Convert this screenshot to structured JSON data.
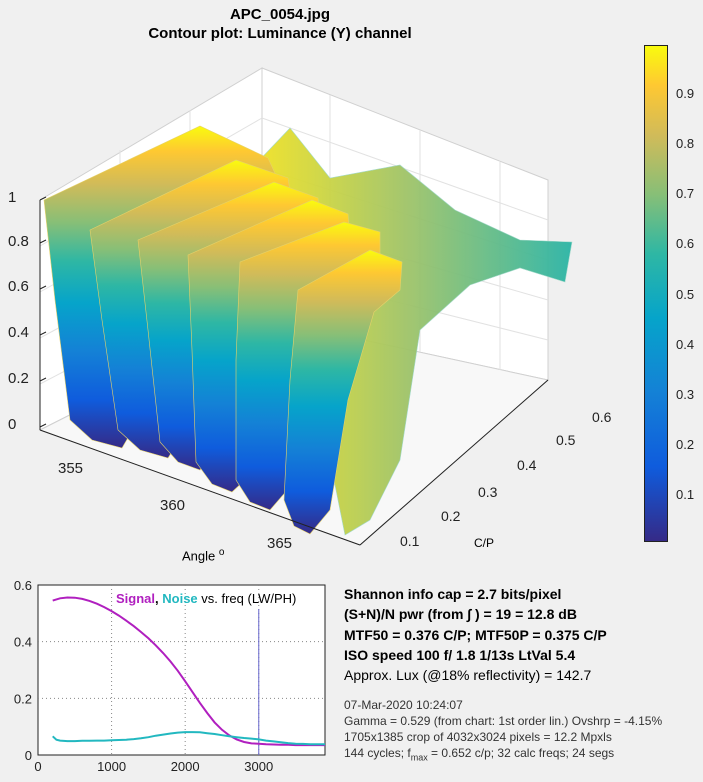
{
  "surface": {
    "title": "APC_0054.jpg",
    "subtitle": "Contour plot:  Luminance (Y) channel",
    "z_ticks": [
      "0",
      "0.2",
      "0.4",
      "0.6",
      "0.8",
      "1"
    ],
    "angle_ticks": [
      "355",
      "360",
      "365"
    ],
    "angle_label": "Angle",
    "angle_label_sup": "o",
    "cp_ticks": [
      "0.1",
      "0.2",
      "0.3",
      "0.4",
      "0.5",
      "0.6"
    ],
    "cp_label": "C/P",
    "colorbar_ticks": [
      "0.1",
      "0.2",
      "0.3",
      "0.4",
      "0.5",
      "0.6",
      "0.7",
      "0.8",
      "0.9"
    ]
  },
  "chart_data": [
    {
      "type": "surface",
      "title": "APC_0054.jpg",
      "subtitle": "Contour plot:  Luminance (Y) channel",
      "xlabel": "Angle °",
      "ylabel": "C/P",
      "angle_range": [
        352,
        368
      ],
      "cp_range": [
        0.05,
        0.65
      ],
      "zlim": [
        0,
        1
      ],
      "colormap": "parula",
      "colorbar_range": [
        0,
        1
      ]
    },
    {
      "type": "line",
      "xlim": [
        0,
        3900
      ],
      "ylim": [
        0,
        0.6
      ],
      "x_ticks": [
        "0",
        "1000",
        "2000",
        "3000"
      ],
      "y_ticks": [
        "0",
        "0.2",
        "0.4",
        "0.6"
      ],
      "legend": {
        "signal": "Signal",
        "sep": ", ",
        "noise": "Noise",
        "suffix": " vs. freq (LW/PH)"
      },
      "vline_x": 3000,
      "series": [
        {
          "name": "Signal",
          "color": "#b01fbf",
          "x": [
            200,
            300,
            400,
            500,
            600,
            700,
            800,
            900,
            1000,
            1100,
            1200,
            1300,
            1400,
            1500,
            1600,
            1700,
            1800,
            1900,
            2000,
            2100,
            2200,
            2300,
            2400,
            2500,
            2600,
            2700,
            2800,
            2900,
            3000,
            3100,
            3200,
            3300,
            3400,
            3500,
            3600,
            3700,
            3800,
            3900
          ],
          "values": [
            0.545,
            0.553,
            0.556,
            0.555,
            0.551,
            0.544,
            0.534,
            0.522,
            0.508,
            0.492,
            0.474,
            0.455,
            0.434,
            0.412,
            0.387,
            0.36,
            0.33,
            0.297,
            0.26,
            0.222,
            0.184,
            0.148,
            0.115,
            0.089,
            0.069,
            0.055,
            0.046,
            0.041,
            0.04,
            0.038,
            0.037,
            0.036,
            0.036,
            0.035,
            0.035,
            0.035,
            0.035,
            0.035
          ]
        },
        {
          "name": "Noise",
          "color": "#22b8c0",
          "x": [
            200,
            250,
            300,
            400,
            500,
            600,
            700,
            800,
            900,
            1000,
            1100,
            1200,
            1300,
            1400,
            1500,
            1600,
            1700,
            1800,
            1900,
            2000,
            2100,
            2200,
            2300,
            2400,
            2500,
            2600,
            2700,
            2800,
            2900,
            3000,
            3100,
            3200,
            3300,
            3400,
            3500,
            3600,
            3700,
            3800,
            3900
          ],
          "values": [
            0.066,
            0.054,
            0.051,
            0.049,
            0.049,
            0.05,
            0.05,
            0.051,
            0.051,
            0.052,
            0.053,
            0.054,
            0.056,
            0.059,
            0.063,
            0.068,
            0.072,
            0.076,
            0.079,
            0.081,
            0.081,
            0.08,
            0.077,
            0.074,
            0.07,
            0.066,
            0.063,
            0.06,
            0.058,
            0.055,
            0.051,
            0.048,
            0.045,
            0.042,
            0.04,
            0.039,
            0.038,
            0.038,
            0.038
          ]
        }
      ]
    }
  ],
  "info": {
    "line1": "Shannon info cap =  2.7 bits/pixel",
    "line2": "(S+N)/N pwr (from ∫ ) = 19 = 12.8 dB",
    "line3": "MTF50 = 0.376 C/P;  MTF50P = 0.375 C/P",
    "line4": "ISO speed  100   f/ 1.8    1/13s   LtVal 5.4",
    "line5": "Approx. Lux (@18% reflectivity) = 142.7",
    "meta1": "07-Mar-2020 10:24:07",
    "meta2": "Gamma = 0.529 (from chart: 1st order lin.)  Ovshrp = -4.15%",
    "meta3": "1705x1385 crop of 4032x3024 pixels = 12.2 Mpxls",
    "meta4_pre": "144 cycles; f",
    "meta4_sub": "max",
    "meta4_post": " = 0.652 c/p;  32 calc freqs;  24 segs"
  }
}
